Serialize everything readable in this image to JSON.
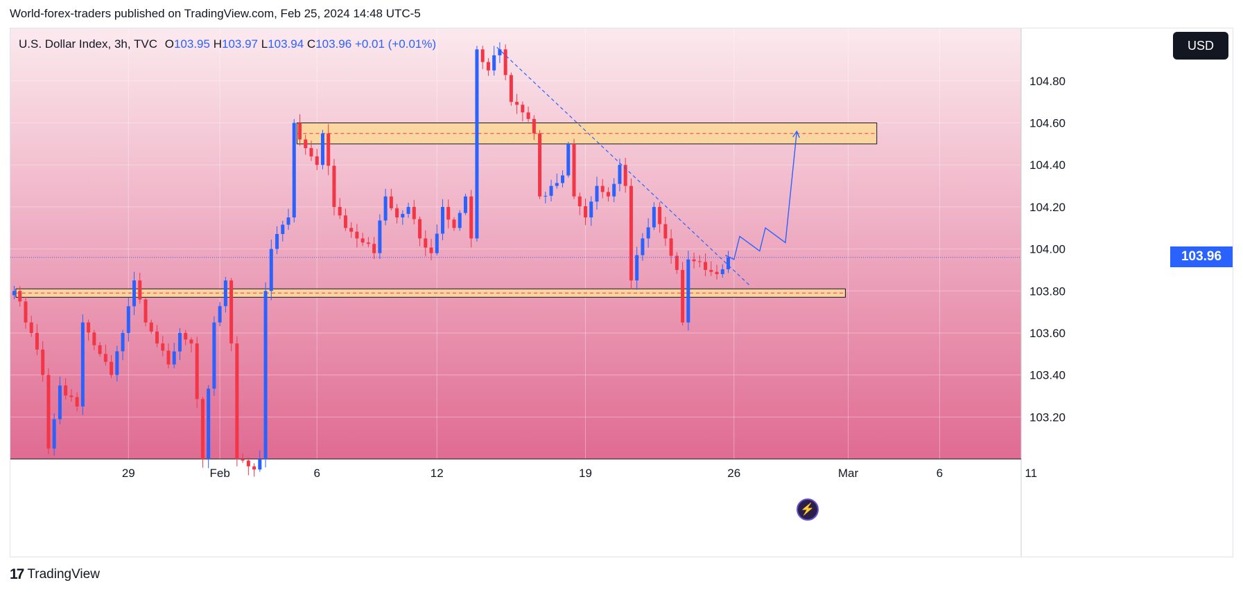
{
  "header": {
    "publisher": "World-forex-traders published on TradingView.com, Feb 25, 2024 14:48 UTC-5"
  },
  "legend": {
    "title": "U.S. Dollar Index, 3h, TVC",
    "open_label": "O",
    "open": "103.95",
    "high_label": "H",
    "high": "103.97",
    "low_label": "L",
    "low": "103.94",
    "close_label": "C",
    "close": "103.96",
    "change": "+0.01 (+0.01%)"
  },
  "currency_button": "USD",
  "last_price_label": "103.96",
  "footer": {
    "logo": "17",
    "brand": "TradingView"
  },
  "colors": {
    "up": "#2962ff",
    "down": "#f23645",
    "zone_fill": "#fbd89a",
    "zone_line": "#f23645",
    "bg_top": "#fbe9ee",
    "bg_bottom": "#e06b92"
  },
  "icons": {
    "replay": "lightning-bolt-icon",
    "logo": "tradingview-logo-icon"
  },
  "chart_data": {
    "type": "candlestick",
    "instrument": "U.S. Dollar Index",
    "interval": "3h",
    "ylim": [
      103.0,
      105.05
    ],
    "y_ticks": [
      "104.80",
      "104.60",
      "104.40",
      "104.20",
      "104.00",
      "103.80",
      "103.60",
      "103.40",
      "103.20"
    ],
    "x_ticks": [
      {
        "label": "29",
        "idx": 20
      },
      {
        "label": "Feb",
        "idx": 36
      },
      {
        "label": "6",
        "idx": 53
      },
      {
        "label": "12",
        "idx": 74
      },
      {
        "label": "19",
        "idx": 100
      },
      {
        "label": "26",
        "idx": 126
      },
      {
        "label": "Mar",
        "idx": 146
      },
      {
        "label": "6",
        "idx": 162
      },
      {
        "label": "11",
        "idx": 178
      }
    ],
    "waypoints": [
      [
        0,
        103.8
      ],
      [
        1,
        103.75
      ],
      [
        3,
        103.6
      ],
      [
        5,
        103.4
      ],
      [
        6,
        103.05
      ],
      [
        8,
        103.35
      ],
      [
        11,
        103.25
      ],
      [
        12,
        103.65
      ],
      [
        15,
        103.5
      ],
      [
        17,
        103.4
      ],
      [
        19,
        103.6
      ],
      [
        21,
        103.85
      ],
      [
        23,
        103.65
      ],
      [
        25,
        103.55
      ],
      [
        27,
        103.45
      ],
      [
        29,
        103.6
      ],
      [
        31,
        103.55
      ],
      [
        33,
        103.0
      ],
      [
        35,
        103.65
      ],
      [
        37,
        103.85
      ],
      [
        38,
        103.55
      ],
      [
        39,
        103.0
      ],
      [
        42,
        102.95
      ],
      [
        43,
        103.0
      ],
      [
        44,
        103.8
      ],
      [
        45,
        104.0
      ],
      [
        48,
        104.15
      ],
      [
        49,
        104.6
      ],
      [
        51,
        104.48
      ],
      [
        53,
        104.4
      ],
      [
        54,
        104.55
      ],
      [
        56,
        104.2
      ],
      [
        58,
        104.1
      ],
      [
        60,
        104.05
      ],
      [
        63,
        103.98
      ],
      [
        65,
        104.25
      ],
      [
        67,
        104.15
      ],
      [
        69,
        104.2
      ],
      [
        71,
        104.05
      ],
      [
        73,
        103.98
      ],
      [
        75,
        104.2
      ],
      [
        77,
        104.1
      ],
      [
        79,
        104.25
      ],
      [
        80,
        104.05
      ],
      [
        81,
        104.95
      ],
      [
        83,
        104.85
      ],
      [
        85,
        104.95
      ],
      [
        87,
        104.7
      ],
      [
        89,
        104.65
      ],
      [
        91,
        104.55
      ],
      [
        92,
        104.25
      ],
      [
        94,
        104.3
      ],
      [
        96,
        104.35
      ],
      [
        97,
        104.5
      ],
      [
        98,
        104.25
      ],
      [
        100,
        104.15
      ],
      [
        102,
        104.3
      ],
      [
        104,
        104.25
      ],
      [
        106,
        104.4
      ],
      [
        107,
        104.3
      ],
      [
        108,
        103.85
      ],
      [
        110,
        104.05
      ],
      [
        112,
        104.2
      ],
      [
        114,
        104.05
      ],
      [
        116,
        103.9
      ],
      [
        117,
        103.65
      ],
      [
        118,
        103.95
      ],
      [
        121,
        103.9
      ],
      [
        123,
        103.88
      ],
      [
        125,
        103.96
      ]
    ],
    "zones": [
      {
        "from_idx": 49.5,
        "to_idx": 151,
        "low": 104.5,
        "high": 104.6,
        "mid": 104.55
      },
      {
        "from_idx": 0.3,
        "to_idx": 145.5,
        "low": 103.77,
        "high": 103.81,
        "mid": 103.79
      }
    ],
    "trendline": {
      "from": [
        84.5,
        104.96
      ],
      "to": [
        129,
        103.82
      ]
    },
    "projection": [
      [
        124.5,
        103.97
      ],
      [
        126,
        103.95
      ],
      [
        127,
        104.06
      ],
      [
        130.5,
        103.99
      ],
      [
        131.5,
        104.1
      ],
      [
        135,
        104.03
      ],
      [
        137,
        104.56
      ]
    ],
    "last_price": 103.96
  }
}
